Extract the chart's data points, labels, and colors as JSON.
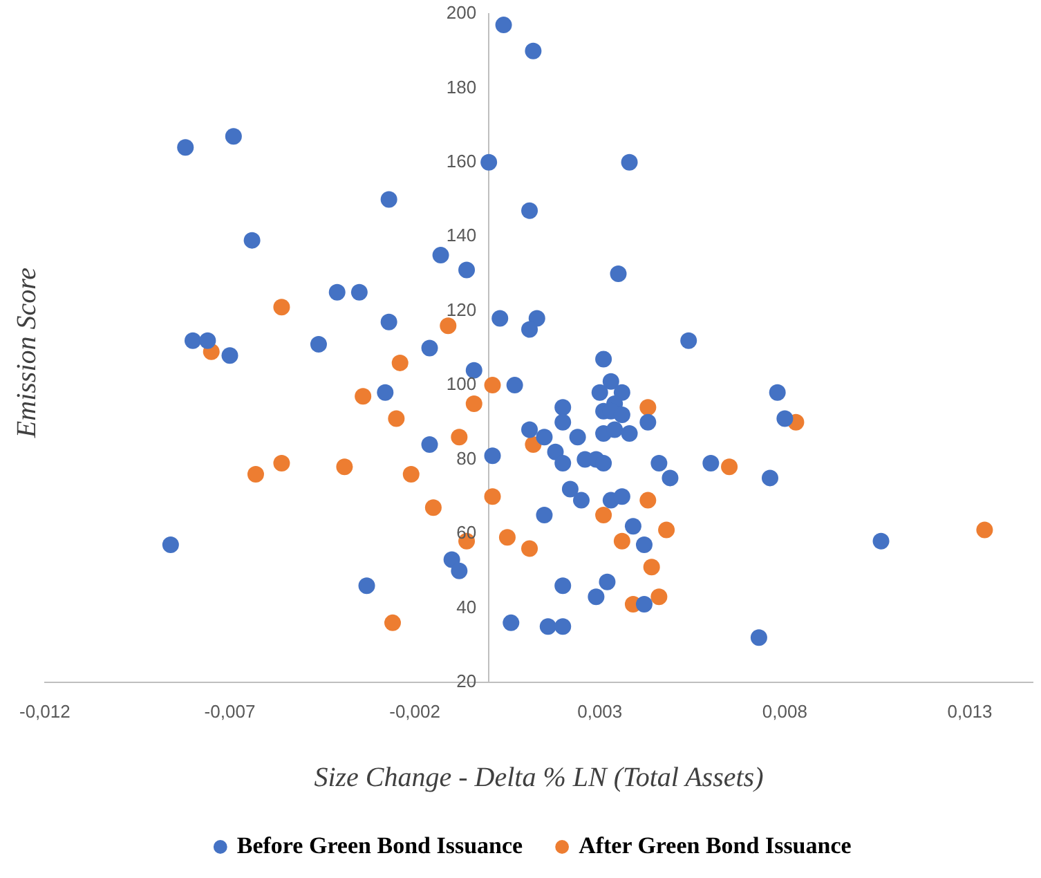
{
  "chart_data": {
    "type": "scatter",
    "xlabel": "Size Change - Delta % LN (Total Assets)",
    "ylabel": "Emission Score",
    "xlim": [
      -0.012,
      0.0147
    ],
    "ylim": [
      20,
      200
    ],
    "xticks": [
      {
        "value": -0.012,
        "label": "-0,012"
      },
      {
        "value": -0.007,
        "label": "-0,007"
      },
      {
        "value": -0.002,
        "label": "-0,002"
      },
      {
        "value": 0.003,
        "label": "0,003"
      },
      {
        "value": 0.008,
        "label": "0,008"
      },
      {
        "value": 0.013,
        "label": "0,013"
      }
    ],
    "yticks": [
      20,
      40,
      60,
      80,
      100,
      120,
      140,
      160,
      180,
      200
    ],
    "grid": false,
    "legend": "bottom",
    "marker": "circle",
    "series": [
      {
        "name": "Before Green Bond Issuance",
        "color": "#4472c4",
        "x": [
          -0.0082,
          -0.0069,
          -0.0064,
          -0.0027,
          -0.0013,
          -0.0006,
          -0.0041,
          -0.0035,
          -0.0027,
          -0.008,
          -0.0076,
          -0.007,
          -0.0046,
          -0.0016,
          -0.0004,
          -0.0028,
          -0.0016,
          -0.0086,
          -0.001,
          -0.0008,
          -0.0033,
          0.0,
          0.0001,
          0.0004,
          0.0012,
          0.0038,
          0.0011,
          0.0035,
          0.0003,
          0.0013,
          0.0011,
          0.0054,
          0.0007,
          0.0031,
          0.0033,
          0.003,
          0.0036,
          0.0034,
          0.0031,
          0.0033,
          0.0036,
          0.002,
          0.002,
          0.0011,
          0.0015,
          0.0024,
          0.0031,
          0.0034,
          0.0038,
          0.0043,
          0.0018,
          0.002,
          0.0026,
          0.0029,
          0.0031,
          0.0046,
          0.0049,
          0.006,
          0.0022,
          0.0025,
          0.0033,
          0.0036,
          0.0015,
          0.0039,
          0.0042,
          0.002,
          0.0032,
          0.0029,
          0.0042,
          0.0006,
          0.0016,
          0.002,
          0.0073,
          0.0078,
          0.008,
          0.0076,
          0.0106
        ],
        "values": [
          164,
          167,
          139,
          150,
          135,
          131,
          125,
          125,
          117,
          112,
          112,
          108,
          111,
          110,
          104,
          98,
          84,
          57,
          53,
          50,
          46,
          160,
          81,
          197,
          190,
          160,
          147,
          130,
          118,
          118,
          115,
          112,
          100,
          107,
          101,
          98,
          98,
          95,
          93,
          93,
          92,
          94,
          90,
          88,
          86,
          86,
          87,
          88,
          87,
          90,
          82,
          79,
          80,
          80,
          79,
          79,
          75,
          79,
          72,
          69,
          69,
          70,
          65,
          62,
          57,
          46,
          47,
          43,
          41,
          36,
          35,
          35,
          32,
          98,
          91,
          75,
          58
        ]
      },
      {
        "name": "After Green Bond Issuance",
        "color": "#ed7d31",
        "x": [
          -0.0056,
          -0.0075,
          -0.0011,
          -0.0024,
          -0.0034,
          -0.0004,
          -0.0025,
          -0.0008,
          -0.0063,
          -0.0056,
          -0.0039,
          -0.0021,
          -0.0015,
          -0.0006,
          -0.0026,
          0.0001,
          0.0001,
          0.0012,
          0.0043,
          0.0043,
          0.0031,
          0.0048,
          0.0036,
          0.0005,
          0.0011,
          0.0044,
          0.0046,
          0.0039,
          0.0065,
          0.0083,
          0.0134
        ],
        "values": [
          121,
          109,
          116,
          106,
          97,
          95,
          91,
          86,
          76,
          79,
          78,
          76,
          67,
          58,
          36,
          70,
          100,
          84,
          94,
          69,
          65,
          61,
          58,
          59,
          56,
          51,
          43,
          41,
          78,
          90,
          61
        ]
      }
    ]
  }
}
